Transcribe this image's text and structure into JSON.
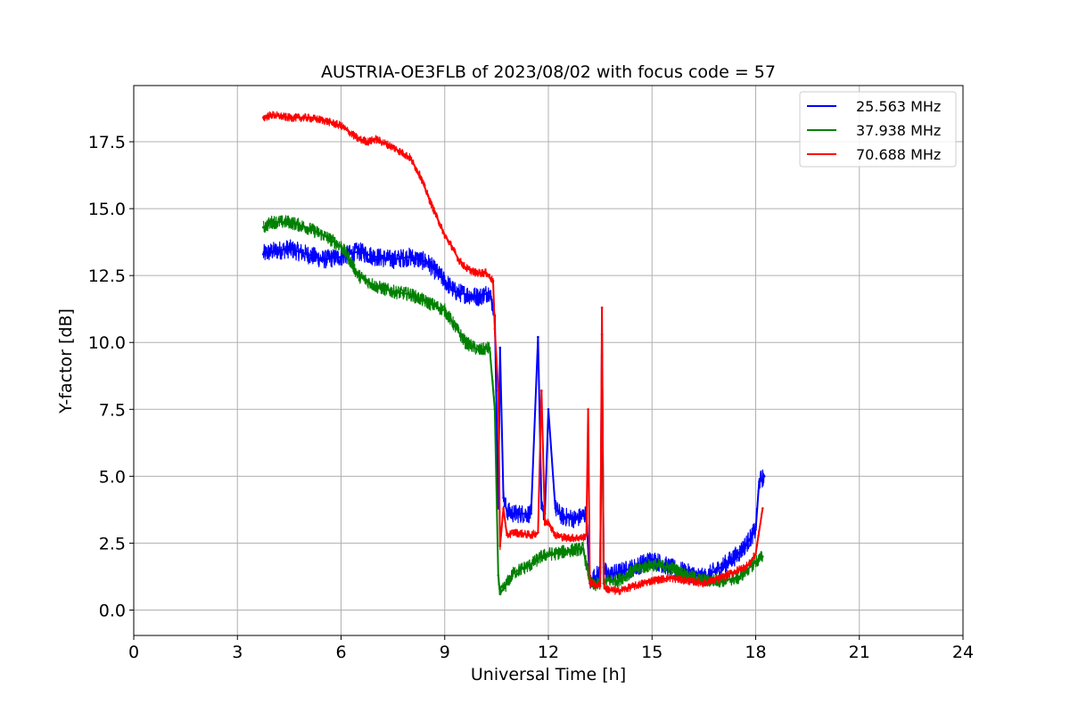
{
  "chart_data": {
    "type": "line",
    "title": "AUSTRIA-OE3FLB of 2023/08/02 with focus code = 57",
    "xlabel": "Universal Time [h]",
    "ylabel": "Y-factor [dB]",
    "xlim": [
      0,
      24
    ],
    "ylim": [
      -0.95,
      19.6
    ],
    "xticks": [
      0,
      3,
      6,
      9,
      12,
      15,
      18,
      21,
      24
    ],
    "yticks": [
      0.0,
      2.5,
      5.0,
      7.5,
      10.0,
      12.5,
      15.0,
      17.5
    ],
    "xtick_labels": [
      "0",
      "3",
      "6",
      "9",
      "12",
      "15",
      "18",
      "21",
      "24"
    ],
    "ytick_labels": [
      "0.0",
      "2.5",
      "5.0",
      "7.5",
      "10.0",
      "12.5",
      "15.0",
      "17.5"
    ],
    "grid": true,
    "legend_position": "top-right",
    "series": [
      {
        "name": "25.563 MHz",
        "color": "#0000ff",
        "noise": 0.7,
        "x": [
          3.75,
          4.0,
          4.5,
          5.0,
          5.5,
          6.0,
          6.5,
          7.0,
          7.5,
          8.0,
          8.5,
          9.0,
          9.3,
          9.6,
          10.0,
          10.3,
          10.45,
          10.55,
          10.6,
          10.7,
          10.8,
          11.0,
          11.5,
          11.7,
          11.8,
          11.9,
          12.0,
          12.2,
          12.4,
          12.8,
          13.1,
          13.2,
          13.3,
          13.5,
          13.55,
          13.6,
          13.7,
          14.0,
          14.5,
          15.0,
          15.5,
          16.0,
          16.5,
          17.0,
          17.5,
          17.8,
          18.0,
          18.1,
          18.25
        ],
        "y": [
          13.3,
          13.4,
          13.5,
          13.3,
          13.1,
          13.2,
          13.4,
          13.2,
          13.1,
          13.2,
          13.0,
          12.3,
          11.9,
          11.8,
          11.7,
          11.9,
          11.0,
          3.8,
          9.8,
          4.2,
          3.7,
          3.6,
          3.6,
          10.2,
          3.8,
          3.6,
          7.5,
          3.8,
          3.5,
          3.4,
          3.6,
          1.0,
          1.2,
          1.4,
          10.3,
          1.6,
          1.3,
          1.4,
          1.6,
          1.9,
          1.6,
          1.4,
          1.2,
          1.6,
          2.1,
          2.6,
          3.0,
          4.8,
          5.0
        ]
      },
      {
        "name": "37.938 MHz",
        "color": "#008000",
        "noise": 0.5,
        "x": [
          3.75,
          4.0,
          4.5,
          5.0,
          5.5,
          6.0,
          6.2,
          6.5,
          7.0,
          7.5,
          8.0,
          8.5,
          9.0,
          9.3,
          9.6,
          10.0,
          10.3,
          10.45,
          10.55,
          10.6,
          10.7,
          10.8,
          11.0,
          11.5,
          11.8,
          12.0,
          12.2,
          12.5,
          13.0,
          13.2,
          13.3,
          13.5,
          13.55,
          13.6,
          13.7,
          14.0,
          14.5,
          15.0,
          15.5,
          16.0,
          16.5,
          17.0,
          17.5,
          18.0,
          18.2
        ],
        "y": [
          14.3,
          14.5,
          14.5,
          14.3,
          14.0,
          13.6,
          13.2,
          12.5,
          12.1,
          11.9,
          11.8,
          11.5,
          11.2,
          10.6,
          10.0,
          9.7,
          9.8,
          7.5,
          1.3,
          0.6,
          0.8,
          1.0,
          1.4,
          1.7,
          2.0,
          2.1,
          2.1,
          2.2,
          2.3,
          1.1,
          0.9,
          1.0,
          9.5,
          1.0,
          1.1,
          1.1,
          1.5,
          1.7,
          1.6,
          1.3,
          1.1,
          1.1,
          1.2,
          1.8,
          2.0
        ]
      },
      {
        "name": "70.688 MHz",
        "color": "#ff0000",
        "noise": 0.3,
        "x": [
          3.75,
          4.0,
          4.5,
          5.0,
          5.5,
          6.0,
          6.3,
          6.5,
          6.8,
          7.0,
          7.5,
          8.0,
          8.3,
          8.6,
          9.0,
          9.2,
          9.4,
          9.6,
          9.9,
          10.2,
          10.4,
          10.45,
          10.55,
          10.6,
          10.7,
          10.8,
          11.0,
          11.5,
          11.7,
          11.8,
          11.9,
          12.0,
          12.2,
          12.5,
          13.0,
          13.1,
          13.15,
          13.2,
          13.5,
          13.55,
          13.6,
          13.65,
          14.0,
          14.5,
          15.0,
          15.5,
          16.0,
          16.5,
          17.0,
          17.5,
          17.8,
          18.0,
          18.2
        ],
        "y": [
          18.4,
          18.5,
          18.4,
          18.4,
          18.3,
          18.1,
          17.8,
          17.6,
          17.5,
          17.6,
          17.3,
          16.9,
          16.2,
          15.2,
          14.0,
          13.6,
          13.1,
          12.8,
          12.6,
          12.6,
          12.3,
          10.5,
          8.2,
          2.4,
          3.8,
          2.8,
          2.9,
          2.8,
          2.9,
          8.2,
          3.2,
          3.3,
          2.8,
          2.7,
          2.7,
          2.8,
          7.5,
          1.0,
          0.9,
          11.3,
          1.0,
          0.8,
          0.7,
          0.9,
          1.1,
          1.2,
          1.1,
          1.0,
          1.2,
          1.5,
          1.7,
          2.1,
          3.8
        ]
      }
    ]
  }
}
